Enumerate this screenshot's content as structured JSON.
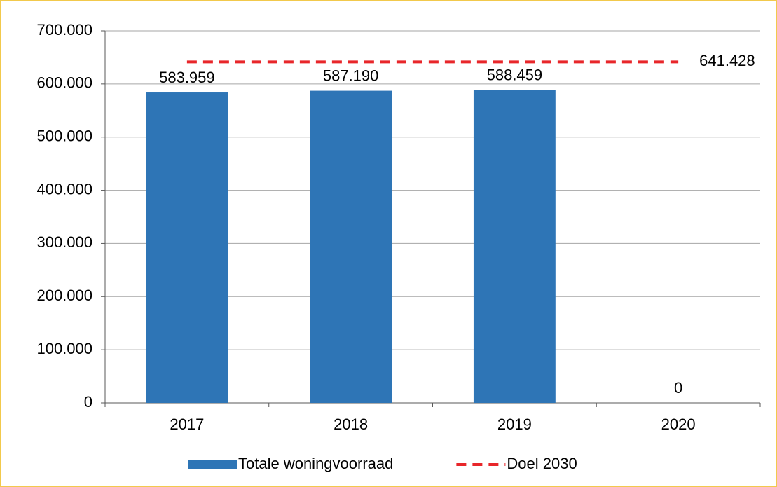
{
  "chart_data": {
    "type": "bar",
    "categories": [
      "2017",
      "2018",
      "2019",
      "2020"
    ],
    "series": [
      {
        "name": "Totale woningvoorraad",
        "type": "bar",
        "color": "#2e75b6",
        "values": [
          583959,
          587190,
          588459,
          0
        ],
        "value_labels": [
          "583.959",
          "587.190",
          "588.459",
          "0"
        ]
      },
      {
        "name": "Doel 2030",
        "type": "line",
        "color": "#e8262a",
        "dashed": true,
        "values": [
          641428,
          641428,
          641428,
          641428
        ],
        "value_labels": [
          null,
          null,
          null,
          "641.428"
        ]
      }
    ],
    "ylim": [
      0,
      700000
    ],
    "yticks": [
      0,
      {
        "value": 100000,
        "label": "100.000"
      },
      {
        "value": 200000,
        "label": "200.000"
      },
      {
        "value": 300000,
        "label": "300.000"
      },
      {
        "value": 400000,
        "label": "400.000"
      },
      {
        "value": 500000,
        "label": "500.000"
      },
      {
        "value": 600000,
        "label": "600.000"
      },
      {
        "value": 700000,
        "label": "700.000"
      }
    ],
    "grid": true,
    "legend": "bottom"
  }
}
